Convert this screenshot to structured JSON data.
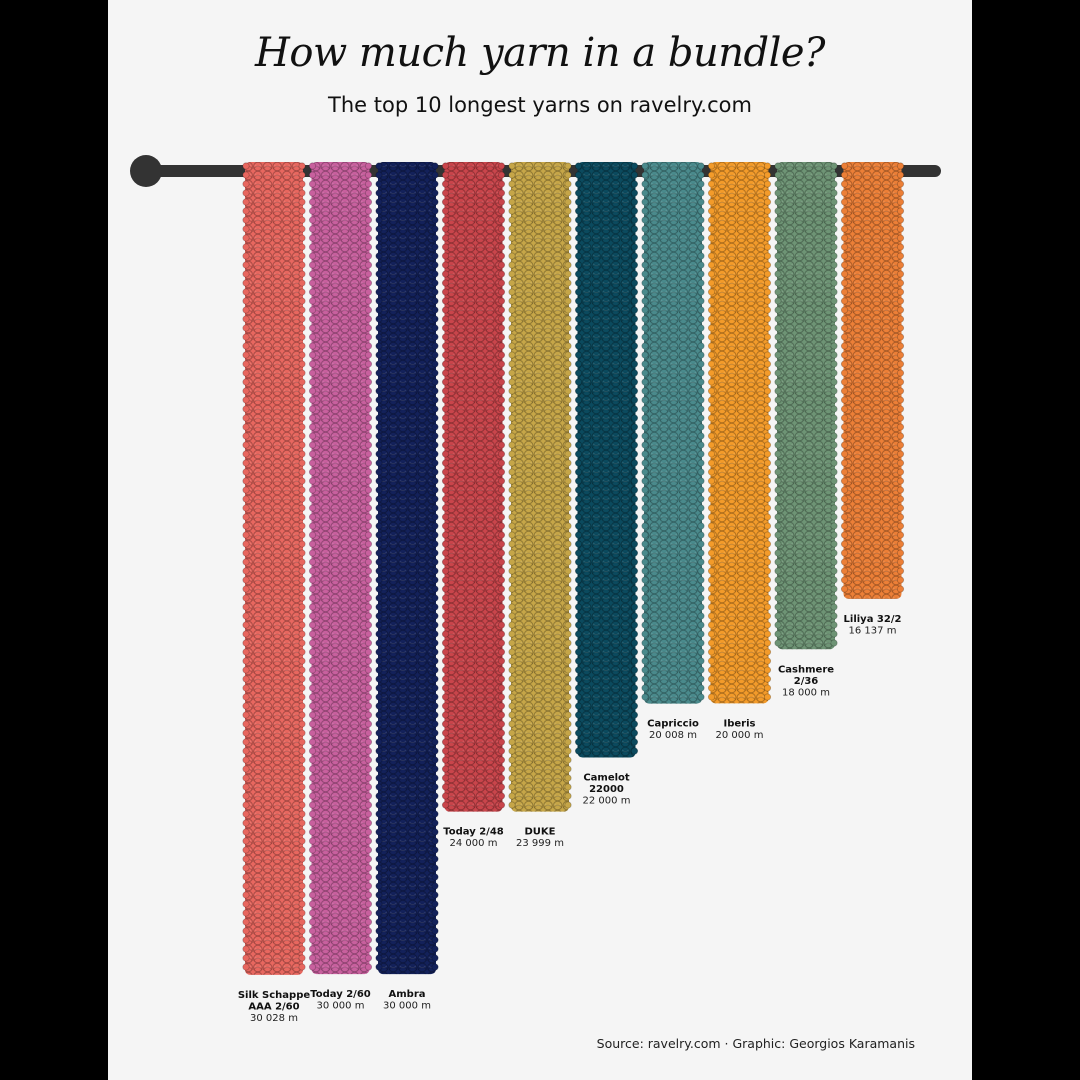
{
  "title": "How much yarn in a bundle?",
  "subtitle": "The top 10 longest yarns on ravelry.com",
  "caption": "Source: ravelry.com · Graphic: Georgios Karamanis",
  "rod_color": "#333333",
  "chart_data": {
    "type": "bar",
    "orientation": "vertical-hanging",
    "categories": [
      "Silk Schappe AAA 2/60",
      "Today 2/60",
      "Ambra",
      "Today 2/48",
      "DUKE",
      "Camelot 22000",
      "Capriccio",
      "Iberis",
      "Cashmere 2/36",
      "Liliya 32/2"
    ],
    "label_lines": [
      [
        "Silk Schappe",
        "AAA 2/60"
      ],
      [
        "Today 2/60"
      ],
      [
        "Ambra"
      ],
      [
        "Today 2/48"
      ],
      [
        "DUKE"
      ],
      [
        "Camelot",
        "22000"
      ],
      [
        "Capriccio"
      ],
      [
        "Iberis"
      ],
      [
        "Cashmere",
        "2/36"
      ],
      [
        "Liliya 32/2"
      ]
    ],
    "values": [
      30028,
      30000,
      30000,
      24000,
      23999,
      22000,
      20008,
      20000,
      18000,
      16137
    ],
    "value_labels": [
      "30 028 m",
      "30 000 m",
      "30 000 m",
      "24 000 m",
      "23 999 m",
      "22 000 m",
      "20 008 m",
      "20 000 m",
      "18 000 m",
      "16 137 m"
    ],
    "unit": "m",
    "colors": [
      "#e8675f",
      "#c8609e",
      "#13215a",
      "#c9454b",
      "#c6a648",
      "#0b4a5e",
      "#4a8a8c",
      "#f39b2a",
      "#6e9475",
      "#ec7f37"
    ]
  }
}
